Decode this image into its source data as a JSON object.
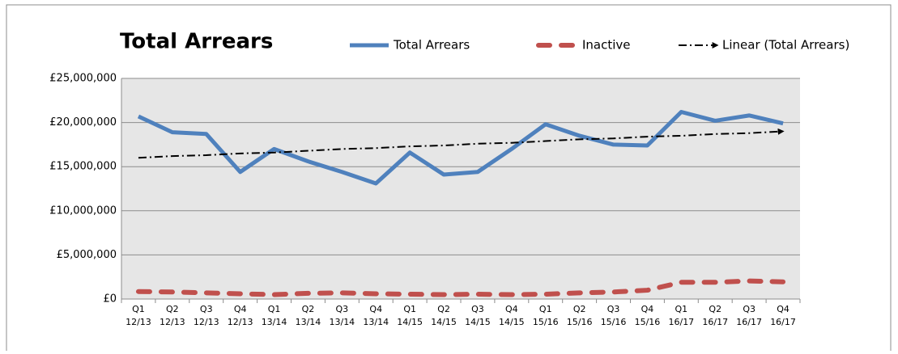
{
  "chart_data": {
    "type": "line",
    "title": "Total Arrears",
    "categories": [
      [
        "Q1",
        "12/13"
      ],
      [
        "Q2",
        "12/13"
      ],
      [
        "Q3",
        "12/13"
      ],
      [
        "Q4",
        "12/13"
      ],
      [
        "Q1",
        "13/14"
      ],
      [
        "Q2",
        "13/14"
      ],
      [
        "Q3",
        "13/14"
      ],
      [
        "Q4",
        "13/14"
      ],
      [
        "Q1",
        "14/15"
      ],
      [
        "Q2",
        "14/15"
      ],
      [
        "Q3",
        "14/15"
      ],
      [
        "Q4",
        "14/15"
      ],
      [
        "Q1",
        "15/16"
      ],
      [
        "Q2",
        "15/16"
      ],
      [
        "Q3",
        "15/16"
      ],
      [
        "Q4",
        "15/16"
      ],
      [
        "Q1",
        "16/17"
      ],
      [
        "Q2",
        "16/17"
      ],
      [
        "Q3",
        "16/17"
      ],
      [
        "Q4",
        "16/17"
      ]
    ],
    "series": [
      {
        "name": "Total Arrears",
        "color": "#4f81bd",
        "style": "solid",
        "values": [
          20700000,
          18900000,
          18700000,
          14400000,
          17000000,
          15600000,
          14400000,
          13100000,
          16600000,
          14100000,
          14400000,
          17000000,
          19800000,
          18500000,
          17500000,
          17400000,
          21200000,
          20200000,
          20800000,
          19900000
        ]
      },
      {
        "name": "Inactive",
        "color": "#c0504d",
        "style": "dashed",
        "values": [
          850000,
          800000,
          700000,
          600000,
          500000,
          650000,
          700000,
          600000,
          550000,
          500000,
          550000,
          500000,
          550000,
          700000,
          800000,
          1000000,
          1900000,
          1900000,
          2050000,
          1950000
        ]
      },
      {
        "name": "Linear (Total Arrears)",
        "color": "#000000",
        "style": "trend",
        "values": [
          16000000,
          16200000,
          16300000,
          16500000,
          16600000,
          16800000,
          17000000,
          17100000,
          17300000,
          17400000,
          17600000,
          17700000,
          17900000,
          18100000,
          18200000,
          18400000,
          18500000,
          18700000,
          18800000,
          19000000
        ]
      }
    ],
    "ylim": [
      0,
      25000000
    ],
    "yticks": [
      {
        "value": 0,
        "label": "£0"
      },
      {
        "value": 5000000,
        "label": "£5,000,000"
      },
      {
        "value": 10000000,
        "label": "£10,000,000"
      },
      {
        "value": 15000000,
        "label": "£15,000,000"
      },
      {
        "value": 20000000,
        "label": "£20,000,000"
      },
      {
        "value": 25000000,
        "label": "£25,000,000"
      }
    ],
    "grid": true,
    "legend": "top"
  }
}
